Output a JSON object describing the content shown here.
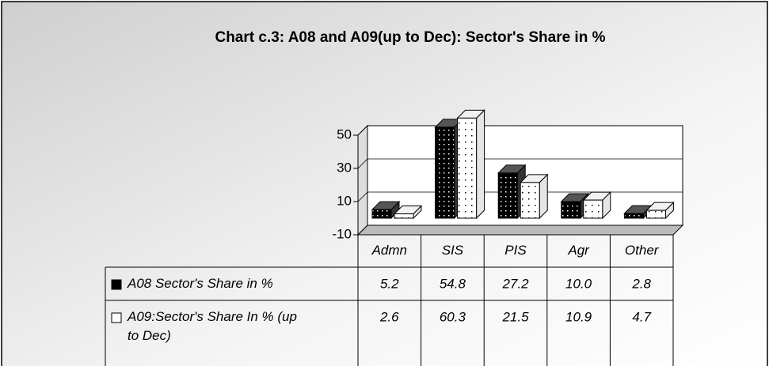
{
  "chart_data": {
    "type": "bar3d",
    "title": "Chart c.3: A08 and A09(up to Dec): Sector's Share in %",
    "categories": [
      "Admn",
      "SIS",
      "PIS",
      "Agr",
      "Other"
    ],
    "series": [
      {
        "name": "A08 Sector's Share in %",
        "color": "#000000",
        "values": [
          5.2,
          54.8,
          27.2,
          10.0,
          2.8
        ],
        "value_labels": [
          "5.2",
          "54.8",
          "27.2",
          "10.0",
          "2.8"
        ]
      },
      {
        "name": "A09:Sector's Share In % (up to Dec)",
        "color": "#ffffff",
        "values": [
          2.6,
          60.3,
          21.5,
          10.9,
          4.7
        ],
        "value_labels": [
          "2.6",
          "60.3",
          "21.5",
          "10.9",
          "4.7"
        ]
      }
    ],
    "ylim": [
      -10,
      50
    ],
    "yticks": [
      -10,
      10,
      30,
      50
    ],
    "grid": true,
    "data_table": true
  }
}
